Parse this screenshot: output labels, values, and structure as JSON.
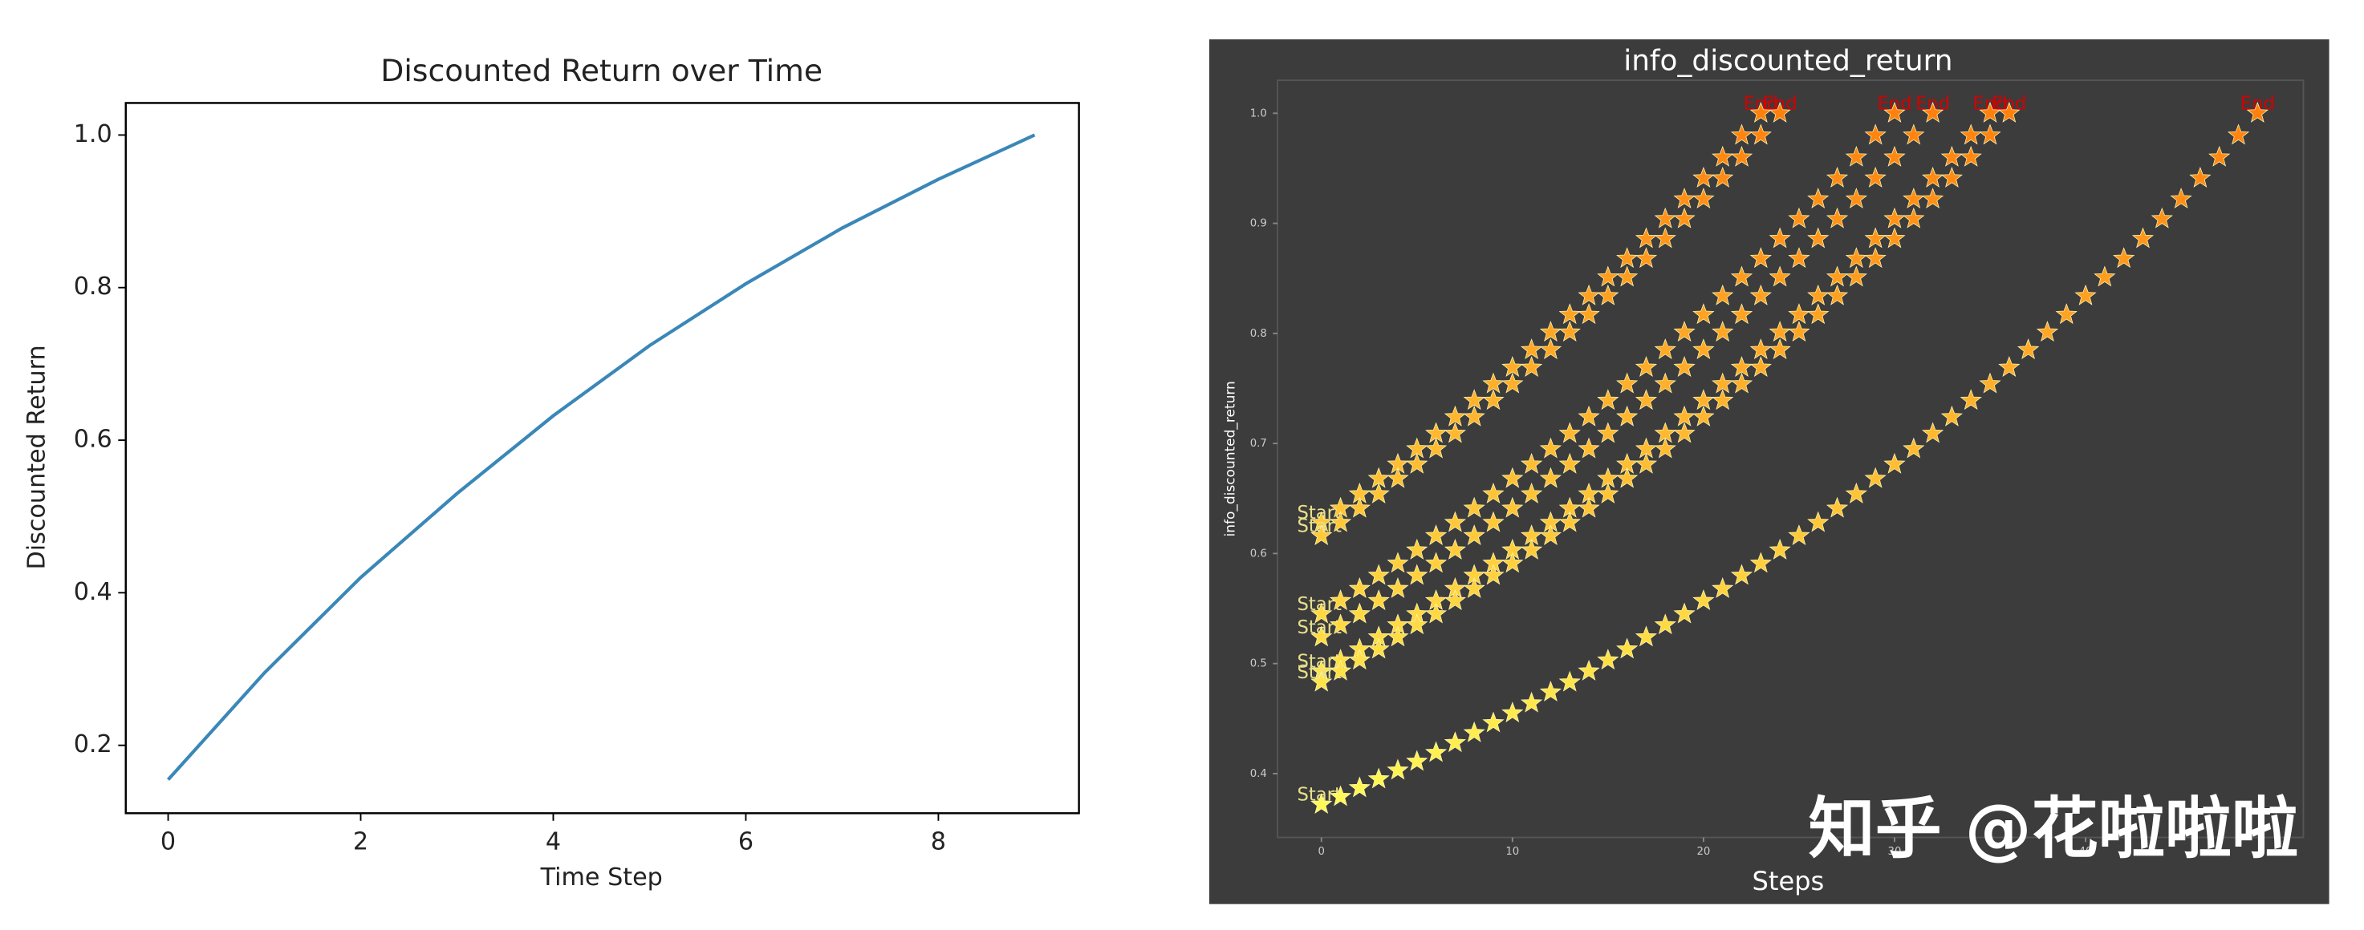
{
  "chart_data": [
    {
      "type": "line",
      "title": "Discounted Return over Time",
      "xlabel": "Time Step",
      "ylabel": "Discounted Return",
      "x": [
        0,
        1,
        2,
        3,
        4,
        5,
        6,
        7,
        8,
        9
      ],
      "values": [
        0.155,
        0.295,
        0.42,
        0.53,
        0.632,
        0.724,
        0.805,
        0.878,
        0.942,
        1.0
      ],
      "color": "#3a87b8",
      "xlim": [
        -0.44,
        9.46
      ],
      "ylim": [
        0.111,
        1.042
      ],
      "xticks": [
        0,
        2,
        4,
        6,
        8
      ],
      "yticks": [
        0.2,
        0.4,
        0.6,
        0.8,
        {
          "value": 1.0,
          "label": "1.0"
        }
      ]
    },
    {
      "type": "scatter",
      "marker": "star",
      "title": "info_discounted_return",
      "xlabel": "Steps",
      "ylabel": "info_discounted_return",
      "start_label": "Start",
      "end_label": "End",
      "watermark": "知乎 @花啦啦啦",
      "background": "#3c3c3c",
      "colormap": [
        "#ffff5a",
        "#ff7a0a"
      ],
      "start_color": "#e9e08c",
      "end_color": "#d40000",
      "xlim": [
        -2.3,
        51.4
      ],
      "ylim": [
        0.342,
        1.03
      ],
      "xticks": [
        0,
        10,
        20,
        30,
        40
      ],
      "yticks": [
        0.4,
        0.5,
        0.6,
        0.7,
        0.8,
        0.9,
        {
          "value": 1.0,
          "label": "1.0"
        }
      ],
      "series": [
        {
          "values": [
            0.628,
            0.641,
            0.654,
            0.668,
            0.681,
            0.695,
            0.709,
            0.724,
            0.739,
            0.754,
            0.769,
            0.785,
            0.801,
            0.817,
            0.834,
            0.851,
            0.868,
            0.886,
            0.904,
            0.922,
            0.941,
            0.96,
            0.98,
            1.0
          ]
        },
        {
          "values": [
            0.616,
            0.628,
            0.641,
            0.654,
            0.668,
            0.681,
            0.695,
            0.709,
            0.724,
            0.739,
            0.754,
            0.769,
            0.785,
            0.801,
            0.817,
            0.834,
            0.851,
            0.868,
            0.886,
            0.904,
            0.922,
            0.941,
            0.96,
            0.98,
            1.0
          ]
        },
        {
          "values": [
            0.545,
            0.557,
            0.568,
            0.58,
            0.591,
            0.603,
            0.616,
            0.628,
            0.641,
            0.654,
            0.668,
            0.681,
            0.695,
            0.709,
            0.724,
            0.739,
            0.754,
            0.769,
            0.785,
            0.801,
            0.817,
            0.834,
            0.851,
            0.868,
            0.886,
            0.904,
            0.922,
            0.941,
            0.96,
            0.98,
            1.0
          ]
        },
        {
          "values": [
            0.524,
            0.535,
            0.545,
            0.557,
            0.568,
            0.58,
            0.591,
            0.603,
            0.616,
            0.628,
            0.641,
            0.654,
            0.668,
            0.681,
            0.695,
            0.709,
            0.724,
            0.739,
            0.754,
            0.769,
            0.785,
            0.801,
            0.817,
            0.834,
            0.851,
            0.868,
            0.886,
            0.904,
            0.922,
            0.941,
            0.96,
            0.98,
            1.0
          ]
        },
        {
          "values": [
            0.493,
            0.503,
            0.513,
            0.524,
            0.535,
            0.545,
            0.557,
            0.568,
            0.58,
            0.591,
            0.603,
            0.616,
            0.628,
            0.641,
            0.654,
            0.668,
            0.681,
            0.695,
            0.709,
            0.724,
            0.739,
            0.754,
            0.769,
            0.785,
            0.801,
            0.817,
            0.834,
            0.851,
            0.868,
            0.886,
            0.904,
            0.922,
            0.941,
            0.96,
            0.98,
            1.0
          ]
        },
        {
          "values": [
            0.483,
            0.493,
            0.503,
            0.513,
            0.524,
            0.535,
            0.545,
            0.557,
            0.568,
            0.58,
            0.591,
            0.603,
            0.616,
            0.628,
            0.641,
            0.654,
            0.668,
            0.681,
            0.695,
            0.709,
            0.724,
            0.739,
            0.754,
            0.769,
            0.785,
            0.801,
            0.817,
            0.834,
            0.851,
            0.868,
            0.886,
            0.904,
            0.922,
            0.941,
            0.96,
            0.98,
            1.0
          ]
        },
        {
          "values": [
            0.372,
            0.379,
            0.387,
            0.395,
            0.403,
            0.411,
            0.419,
            0.428,
            0.437,
            0.446,
            0.455,
            0.464,
            0.474,
            0.483,
            0.493,
            0.503,
            0.513,
            0.524,
            0.535,
            0.545,
            0.557,
            0.568,
            0.58,
            0.591,
            0.603,
            0.616,
            0.628,
            0.641,
            0.654,
            0.668,
            0.681,
            0.695,
            0.709,
            0.724,
            0.739,
            0.754,
            0.769,
            0.785,
            0.801,
            0.817,
            0.834,
            0.851,
            0.868,
            0.886,
            0.904,
            0.922,
            0.941,
            0.96,
            0.98,
            1.0
          ]
        }
      ]
    }
  ]
}
